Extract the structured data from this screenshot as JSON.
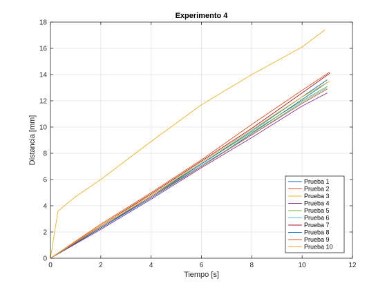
{
  "chart_data": {
    "type": "line",
    "title": "Experimento 4",
    "xlabel": "Tiempo [s]",
    "ylabel": "Distancia [mm]",
    "xlim": [
      0,
      12
    ],
    "ylim": [
      0,
      18
    ],
    "xticks": [
      0,
      2,
      4,
      6,
      8,
      10,
      12
    ],
    "yticks": [
      0,
      2,
      4,
      6,
      8,
      10,
      12,
      14,
      16,
      18
    ],
    "grid": true,
    "legend_position": "bottom-right",
    "series": [
      {
        "name": "Prueba 1",
        "color": "#0072bd",
        "x": [
          0,
          2,
          4,
          6,
          8,
          10,
          11.0
        ],
        "y": [
          0,
          2.3,
          4.6,
          7.0,
          9.5,
          12.1,
          13.4
        ]
      },
      {
        "name": "Prueba 2",
        "color": "#d95319",
        "x": [
          0,
          2,
          4,
          6,
          8,
          10,
          11.1
        ],
        "y": [
          0,
          2.6,
          5.0,
          7.5,
          10.2,
          12.8,
          14.2
        ]
      },
      {
        "name": "Prueba 3",
        "color": "#edb120",
        "x": [
          0,
          0.3,
          1,
          2,
          4,
          6,
          8,
          10,
          10.9
        ],
        "y": [
          0,
          3.6,
          4.7,
          6.0,
          8.9,
          11.7,
          14.0,
          16.1,
          17.4
        ]
      },
      {
        "name": "Prueba 4",
        "color": "#7e2f8e",
        "x": [
          0,
          2,
          4,
          6,
          8,
          10,
          11.0
        ],
        "y": [
          0,
          2.2,
          4.5,
          6.9,
          9.2,
          11.6,
          12.6
        ]
      },
      {
        "name": "Prueba 5",
        "color": "#77ac30",
        "x": [
          0,
          2,
          4,
          6,
          8,
          10,
          11.0
        ],
        "y": [
          0,
          2.5,
          4.8,
          7.2,
          9.6,
          12.0,
          13.1
        ]
      },
      {
        "name": "Prueba 6",
        "color": "#4dbeee",
        "x": [
          0,
          2,
          4,
          6,
          8,
          10,
          11.0
        ],
        "y": [
          0,
          2.4,
          4.7,
          7.1,
          9.4,
          11.9,
          13.0
        ]
      },
      {
        "name": "Prueba 7",
        "color": "#a2142f",
        "x": [
          0,
          2,
          4,
          6,
          8,
          10,
          11.1
        ],
        "y": [
          0,
          2.5,
          4.9,
          7.4,
          9.9,
          12.6,
          14.1
        ]
      },
      {
        "name": "Prueba 8",
        "color": "#0072bd",
        "x": [
          0,
          2,
          4,
          6,
          8,
          10,
          11.0
        ],
        "y": [
          0,
          2.3,
          4.7,
          7.2,
          9.7,
          12.3,
          13.6
        ]
      },
      {
        "name": "Prueba 9",
        "color": "#d95319",
        "x": [
          0,
          2,
          4,
          6,
          8,
          10,
          11.0
        ],
        "y": [
          0,
          2.4,
          4.7,
          7.0,
          9.4,
          11.8,
          12.9
        ]
      },
      {
        "name": "Prueba 10",
        "color": "#edb120",
        "x": [
          0,
          2,
          4,
          6,
          8,
          10,
          11.1
        ],
        "y": [
          0,
          2.5,
          4.8,
          7.3,
          9.8,
          12.3,
          13.5
        ]
      }
    ]
  }
}
